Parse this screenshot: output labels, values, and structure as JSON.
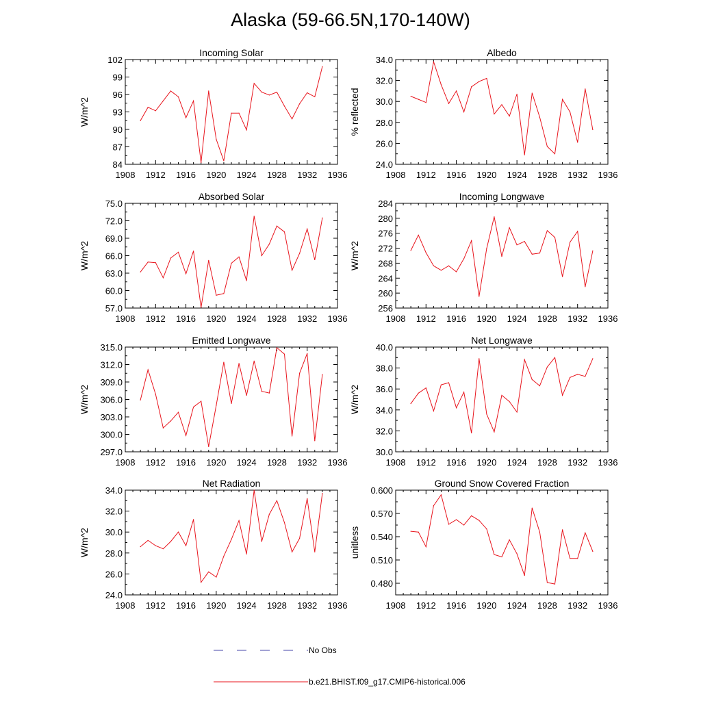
{
  "title": "Alaska (59-66.5N,170-140W)",
  "legend": {
    "placement": "bottom-center",
    "entries": [
      {
        "label": "No Obs",
        "color": "#4444aa",
        "style": "dashed"
      },
      {
        "label": "b.e21.BHIST.f09_g17.CMIP6-historical.006",
        "color": "#e8141c",
        "style": "solid"
      }
    ]
  },
  "chart_data": [
    {
      "type": "line",
      "title": "Incoming Solar",
      "ylabel": "W/m^2",
      "xlim": [
        1908,
        1936
      ],
      "ylim": [
        84,
        102
      ],
      "xticks": [
        1908,
        1912,
        1916,
        1920,
        1924,
        1928,
        1932,
        1936
      ],
      "yticks": [
        "84",
        "87",
        "90",
        "93",
        "96",
        "99",
        "102"
      ],
      "series": [
        {
          "color": "#e8141c",
          "x": [
            1910,
            1911,
            1912,
            1913,
            1914,
            1915,
            1916,
            1917,
            1918,
            1919,
            1920,
            1921,
            1922,
            1923,
            1924,
            1925,
            1926,
            1927,
            1928,
            1929,
            1930,
            1931,
            1932,
            1933,
            1934
          ],
          "y": [
            91.5,
            93.8,
            93.2,
            94.9,
            96.6,
            95.6,
            92.0,
            94.9,
            84.3,
            96.6,
            88.3,
            84.6,
            92.8,
            92.8,
            89.9,
            97.9,
            96.4,
            95.9,
            96.4,
            94.0,
            91.8,
            94.4,
            96.3,
            95.6,
            100.8
          ]
        }
      ]
    },
    {
      "type": "line",
      "title": "Albedo",
      "ylabel": "% reflected",
      "xlim": [
        1908,
        1936
      ],
      "ylim": [
        24,
        34
      ],
      "xticks": [
        1908,
        1912,
        1916,
        1920,
        1924,
        1928,
        1932,
        1936
      ],
      "yticks": [
        "24.0",
        "26.0",
        "28.0",
        "30.0",
        "32.0",
        "34.0"
      ],
      "series": [
        {
          "color": "#e8141c",
          "x": [
            1910,
            1911,
            1912,
            1913,
            1914,
            1915,
            1916,
            1917,
            1918,
            1919,
            1920,
            1921,
            1922,
            1923,
            1924,
            1925,
            1926,
            1927,
            1928,
            1929,
            1930,
            1931,
            1932,
            1933,
            1934
          ],
          "y": [
            30.5,
            30.2,
            29.9,
            33.8,
            31.6,
            29.8,
            31.0,
            29.0,
            31.4,
            31.9,
            32.2,
            28.8,
            29.7,
            28.6,
            30.7,
            24.9,
            30.8,
            28.5,
            25.7,
            25.0,
            30.2,
            29.0,
            26.1,
            31.2,
            27.3
          ]
        }
      ]
    },
    {
      "type": "line",
      "title": "Absorbed Solar",
      "ylabel": "W/m^2",
      "xlim": [
        1908,
        1936
      ],
      "ylim": [
        57,
        75
      ],
      "xticks": [
        1908,
        1912,
        1916,
        1920,
        1924,
        1928,
        1932,
        1936
      ],
      "yticks": [
        "57.0",
        "60.0",
        "63.0",
        "66.0",
        "69.0",
        "72.0",
        "75.0"
      ],
      "series": [
        {
          "color": "#e8141c",
          "x": [
            1910,
            1911,
            1912,
            1913,
            1914,
            1915,
            1916,
            1917,
            1918,
            1919,
            1920,
            1921,
            1922,
            1923,
            1924,
            1925,
            1926,
            1927,
            1928,
            1929,
            1930,
            1931,
            1932,
            1933,
            1934
          ],
          "y": [
            63.2,
            64.9,
            64.8,
            62.2,
            65.6,
            66.6,
            62.9,
            66.8,
            57.1,
            65.2,
            59.2,
            59.5,
            64.7,
            65.8,
            61.7,
            72.8,
            66.0,
            68.0,
            71.1,
            70.1,
            63.5,
            66.4,
            70.6,
            65.3,
            72.5
          ]
        }
      ]
    },
    {
      "type": "line",
      "title": "Incoming Longwave",
      "ylabel": "W/m^2",
      "xlim": [
        1908,
        1936
      ],
      "ylim": [
        256,
        284
      ],
      "xticks": [
        1908,
        1912,
        1916,
        1920,
        1924,
        1928,
        1932,
        1936
      ],
      "yticks": [
        "256",
        "260",
        "264",
        "268",
        "272",
        "276",
        "280",
        "284"
      ],
      "series": [
        {
          "color": "#e8141c",
          "x": [
            1910,
            1911,
            1912,
            1913,
            1914,
            1915,
            1916,
            1917,
            1918,
            1919,
            1920,
            1921,
            1922,
            1923,
            1924,
            1925,
            1926,
            1927,
            1928,
            1929,
            1930,
            1931,
            1932,
            1933,
            1934
          ],
          "y": [
            271.4,
            275.5,
            270.8,
            267.3,
            266.1,
            267.3,
            265.7,
            269.2,
            274.0,
            259.1,
            271.9,
            280.4,
            269.8,
            277.5,
            272.9,
            273.8,
            270.4,
            270.7,
            276.7,
            274.9,
            264.4,
            273.6,
            276.5,
            261.7,
            271.3
          ]
        }
      ]
    },
    {
      "type": "line",
      "title": "Emitted Longwave",
      "ylabel": "W/m^2",
      "xlim": [
        1908,
        1936
      ],
      "ylim": [
        297,
        315
      ],
      "xticks": [
        1908,
        1912,
        1916,
        1920,
        1924,
        1928,
        1932,
        1936
      ],
      "yticks": [
        "297.0",
        "300.0",
        "303.0",
        "306.0",
        "309.0",
        "312.0",
        "315.0"
      ],
      "series": [
        {
          "color": "#e8141c",
          "x": [
            1910,
            1911,
            1912,
            1913,
            1914,
            1915,
            1916,
            1917,
            1918,
            1919,
            1920,
            1921,
            1922,
            1923,
            1924,
            1925,
            1926,
            1927,
            1928,
            1929,
            1930,
            1931,
            1932,
            1933,
            1934
          ],
          "y": [
            305.9,
            311.1,
            306.9,
            301.1,
            302.3,
            303.8,
            299.8,
            304.7,
            305.7,
            297.9,
            305.0,
            312.4,
            305.3,
            312.2,
            306.7,
            312.6,
            307.4,
            307.1,
            314.9,
            313.8,
            299.7,
            310.5,
            313.9,
            298.9,
            310.3
          ]
        }
      ]
    },
    {
      "type": "line",
      "title": "Net Longwave",
      "ylabel": "W/m^2",
      "xlim": [
        1908,
        1936
      ],
      "ylim": [
        30,
        40
      ],
      "xticks": [
        1908,
        1912,
        1916,
        1920,
        1924,
        1928,
        1932,
        1936
      ],
      "yticks": [
        "30.0",
        "32.0",
        "34.0",
        "36.0",
        "38.0",
        "40.0"
      ],
      "series": [
        {
          "color": "#e8141c",
          "x": [
            1910,
            1911,
            1912,
            1913,
            1914,
            1915,
            1916,
            1917,
            1918,
            1919,
            1920,
            1921,
            1922,
            1923,
            1924,
            1925,
            1926,
            1927,
            1928,
            1929,
            1930,
            1931,
            1932,
            1933,
            1934
          ],
          "y": [
            34.6,
            35.6,
            36.1,
            33.9,
            36.4,
            36.6,
            34.2,
            35.7,
            31.8,
            38.9,
            33.6,
            31.9,
            35.4,
            34.8,
            33.8,
            38.8,
            36.9,
            36.3,
            38.1,
            39.0,
            35.4,
            37.1,
            37.4,
            37.2,
            38.9
          ]
        }
      ]
    },
    {
      "type": "line",
      "title": "Net Radiation",
      "ylabel": "W/m^2",
      "xlim": [
        1908,
        1936
      ],
      "ylim": [
        24,
        34
      ],
      "xticks": [
        1908,
        1912,
        1916,
        1920,
        1924,
        1928,
        1932,
        1936
      ],
      "yticks": [
        "24.0",
        "26.0",
        "28.0",
        "30.0",
        "32.0",
        "34.0"
      ],
      "series": [
        {
          "color": "#e8141c",
          "x": [
            1910,
            1911,
            1912,
            1913,
            1914,
            1915,
            1916,
            1917,
            1918,
            1919,
            1920,
            1921,
            1922,
            1923,
            1924,
            1925,
            1926,
            1927,
            1928,
            1929,
            1930,
            1931,
            1932,
            1933,
            1934
          ],
          "y": [
            28.6,
            29.2,
            28.7,
            28.4,
            29.1,
            30.0,
            28.7,
            31.2,
            25.2,
            26.2,
            25.7,
            27.7,
            29.3,
            31.1,
            27.9,
            34.0,
            29.1,
            31.7,
            33.0,
            30.9,
            28.1,
            29.4,
            33.2,
            28.1,
            33.7
          ]
        }
      ]
    },
    {
      "type": "line",
      "title": "Ground Snow Covered Fraction",
      "ylabel": "unitless",
      "xlim": [
        1908,
        1936
      ],
      "ylim": [
        0.465,
        0.6
      ],
      "xticks": [
        1908,
        1912,
        1916,
        1920,
        1924,
        1928,
        1932,
        1936
      ],
      "yticks": [
        "0.480",
        "0.510",
        "0.540",
        "0.570",
        "0.600"
      ],
      "series": [
        {
          "color": "#e8141c",
          "x": [
            1910,
            1911,
            1912,
            1913,
            1914,
            1915,
            1916,
            1917,
            1918,
            1919,
            1920,
            1921,
            1922,
            1923,
            1924,
            1925,
            1926,
            1927,
            1928,
            1929,
            1930,
            1931,
            1932,
            1933,
            1934
          ],
          "y": [
            0.547,
            0.546,
            0.527,
            0.58,
            0.594,
            0.556,
            0.562,
            0.555,
            0.567,
            0.561,
            0.55,
            0.517,
            0.514,
            0.536,
            0.518,
            0.49,
            0.577,
            0.546,
            0.481,
            0.479,
            0.549,
            0.512,
            0.512,
            0.545,
            0.521
          ]
        }
      ]
    }
  ]
}
